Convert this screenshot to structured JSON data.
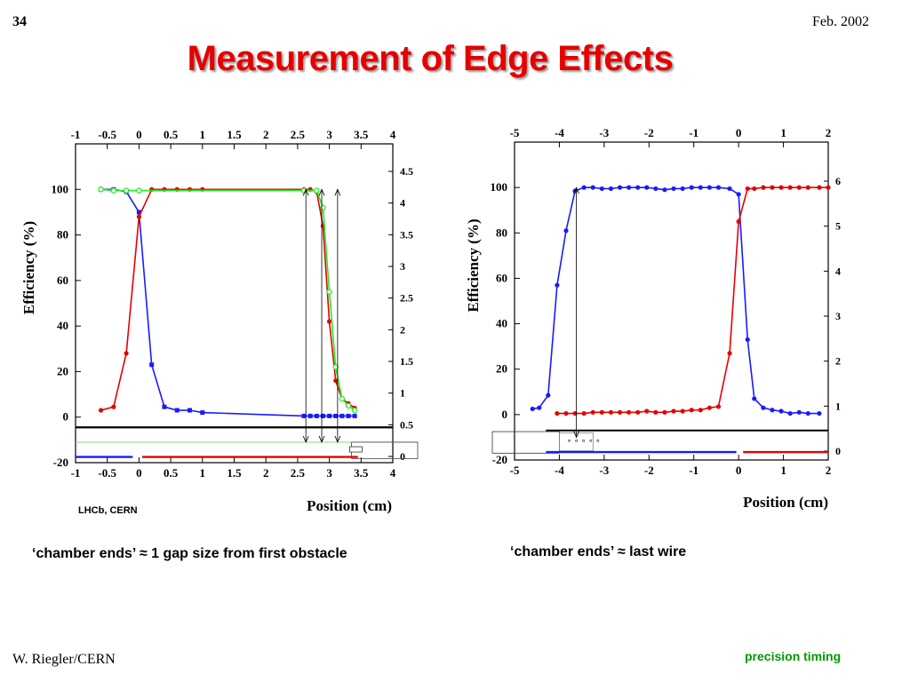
{
  "slide": {
    "number": "34",
    "date": "Feb. 2002",
    "title": "Measurement of Edge Effects",
    "author": "W. Riegler/CERN",
    "footer_tag": "precision timing",
    "lhcb_label": "LHCb, CERN",
    "caption_left": "‘chamber ends’  ≈ 1 gap size from first obstacle",
    "caption_right": "‘chamber ends’ ≈ last wire"
  },
  "chart_data": [
    {
      "type": "line",
      "ylabel": "Efficiency (%)",
      "xlabel": "Position (cm)",
      "xlim": [
        -1,
        4
      ],
      "ylim": [
        -20,
        120
      ],
      "x_ticks": [
        "-1",
        "-0.5",
        "0",
        "0.5",
        "1",
        "1.5",
        "2",
        "2.5",
        "3",
        "3.5",
        "4"
      ],
      "y_ticks": [
        "-20",
        "0",
        "20",
        "40",
        "60",
        "80",
        "100"
      ],
      "right_ticks": [
        "0",
        "0.5",
        "1",
        "1.5",
        "2",
        "2.5",
        "3",
        "3.5",
        "4",
        "4.5"
      ],
      "series": [
        {
          "color": "#1a1aff",
          "marker": "square",
          "x": [
            -0.6,
            -0.4,
            -0.2,
            0.0,
            0.2,
            0.4,
            0.6,
            0.8,
            1.0,
            2.6,
            2.7,
            2.8,
            2.9,
            3.0,
            3.1,
            3.2,
            3.3,
            3.4
          ],
          "y": [
            100,
            100,
            99,
            90,
            23,
            4.5,
            3,
            3,
            2,
            0.5,
            0.5,
            0.5,
            0.5,
            0.5,
            0.5,
            0.5,
            0.5,
            0.5
          ]
        },
        {
          "color": "#e60000",
          "marker": "circle",
          "x": [
            -0.6,
            -0.4,
            -0.2,
            0.0,
            0.2,
            0.4,
            0.6,
            0.8,
            1.0,
            2.6,
            2.7,
            2.8,
            2.9,
            3.0,
            3.1,
            3.2,
            3.3,
            3.4
          ],
          "y": [
            3,
            4.5,
            28,
            88,
            100,
            100,
            100,
            100,
            100,
            100,
            100,
            99,
            84,
            42,
            16,
            8,
            6,
            4
          ]
        },
        {
          "color": "#22ee22",
          "marker": "open-circle",
          "x": [
            -0.6,
            -0.4,
            -0.2,
            0.0,
            2.6,
            2.8,
            2.9,
            3.0,
            3.1,
            3.2,
            3.3,
            3.4
          ],
          "y": [
            100,
            99.5,
            99.5,
            99.5,
            99.5,
            99.5,
            92,
            55,
            22,
            8,
            5,
            3
          ]
        }
      ],
      "grid": false
    },
    {
      "type": "line",
      "ylabel": "Efficiency (%)",
      "xlabel": "Position (cm)",
      "xlim": [
        -5,
        2
      ],
      "ylim": [
        -20,
        120
      ],
      "x_ticks": [
        "-5",
        "-4",
        "-3",
        "-2",
        "-1",
        "0",
        "1",
        "2"
      ],
      "y_ticks": [
        "-20",
        "0",
        "20",
        "40",
        "60",
        "80",
        "100"
      ],
      "right_ticks": [
        "0",
        "1",
        "2",
        "3",
        "4",
        "5",
        "6"
      ],
      "series": [
        {
          "color": "#1a1aff",
          "marker": "circle",
          "x": [
            -4.6,
            -4.45,
            -4.25,
            -4.05,
            -3.85,
            -3.65,
            -3.45,
            -3.25,
            -3.05,
            -2.85,
            -2.65,
            -2.45,
            -2.25,
            -2.05,
            -1.85,
            -1.65,
            -1.45,
            -1.25,
            -1.05,
            -0.85,
            -0.65,
            -0.45,
            -0.2,
            0.0,
            0.2,
            0.35,
            0.55,
            0.75,
            0.95,
            1.15,
            1.35,
            1.55,
            1.8
          ],
          "y": [
            2.5,
            3,
            8.5,
            57,
            81,
            98.5,
            100,
            100,
            99.5,
            99.5,
            100,
            100,
            100,
            100,
            99.5,
            99,
            99.5,
            99.5,
            100,
            100,
            100,
            100,
            99.5,
            97,
            33,
            7,
            3,
            2,
            1.5,
            0.5,
            1,
            0.5,
            0.5
          ]
        },
        {
          "color": "#e60000",
          "marker": "circle",
          "x": [
            -4.05,
            -3.85,
            -3.65,
            -3.45,
            -3.25,
            -3.05,
            -2.85,
            -2.65,
            -2.45,
            -2.25,
            -2.05,
            -1.85,
            -1.65,
            -1.45,
            -1.25,
            -1.05,
            -0.85,
            -0.65,
            -0.45,
            -0.2,
            0.0,
            0.2,
            0.35,
            0.55,
            0.75,
            0.95,
            1.15,
            1.35,
            1.55,
            1.8,
            2.0
          ],
          "y": [
            0.5,
            0.5,
            0.5,
            0.5,
            1,
            1,
            1,
            1,
            1,
            1,
            1.5,
            1,
            1,
            1.5,
            1.5,
            2,
            2,
            3,
            3.5,
            27,
            85,
            99.5,
            99.5,
            100,
            100,
            100,
            100,
            100,
            100,
            100,
            100
          ]
        }
      ],
      "grid": false
    }
  ]
}
